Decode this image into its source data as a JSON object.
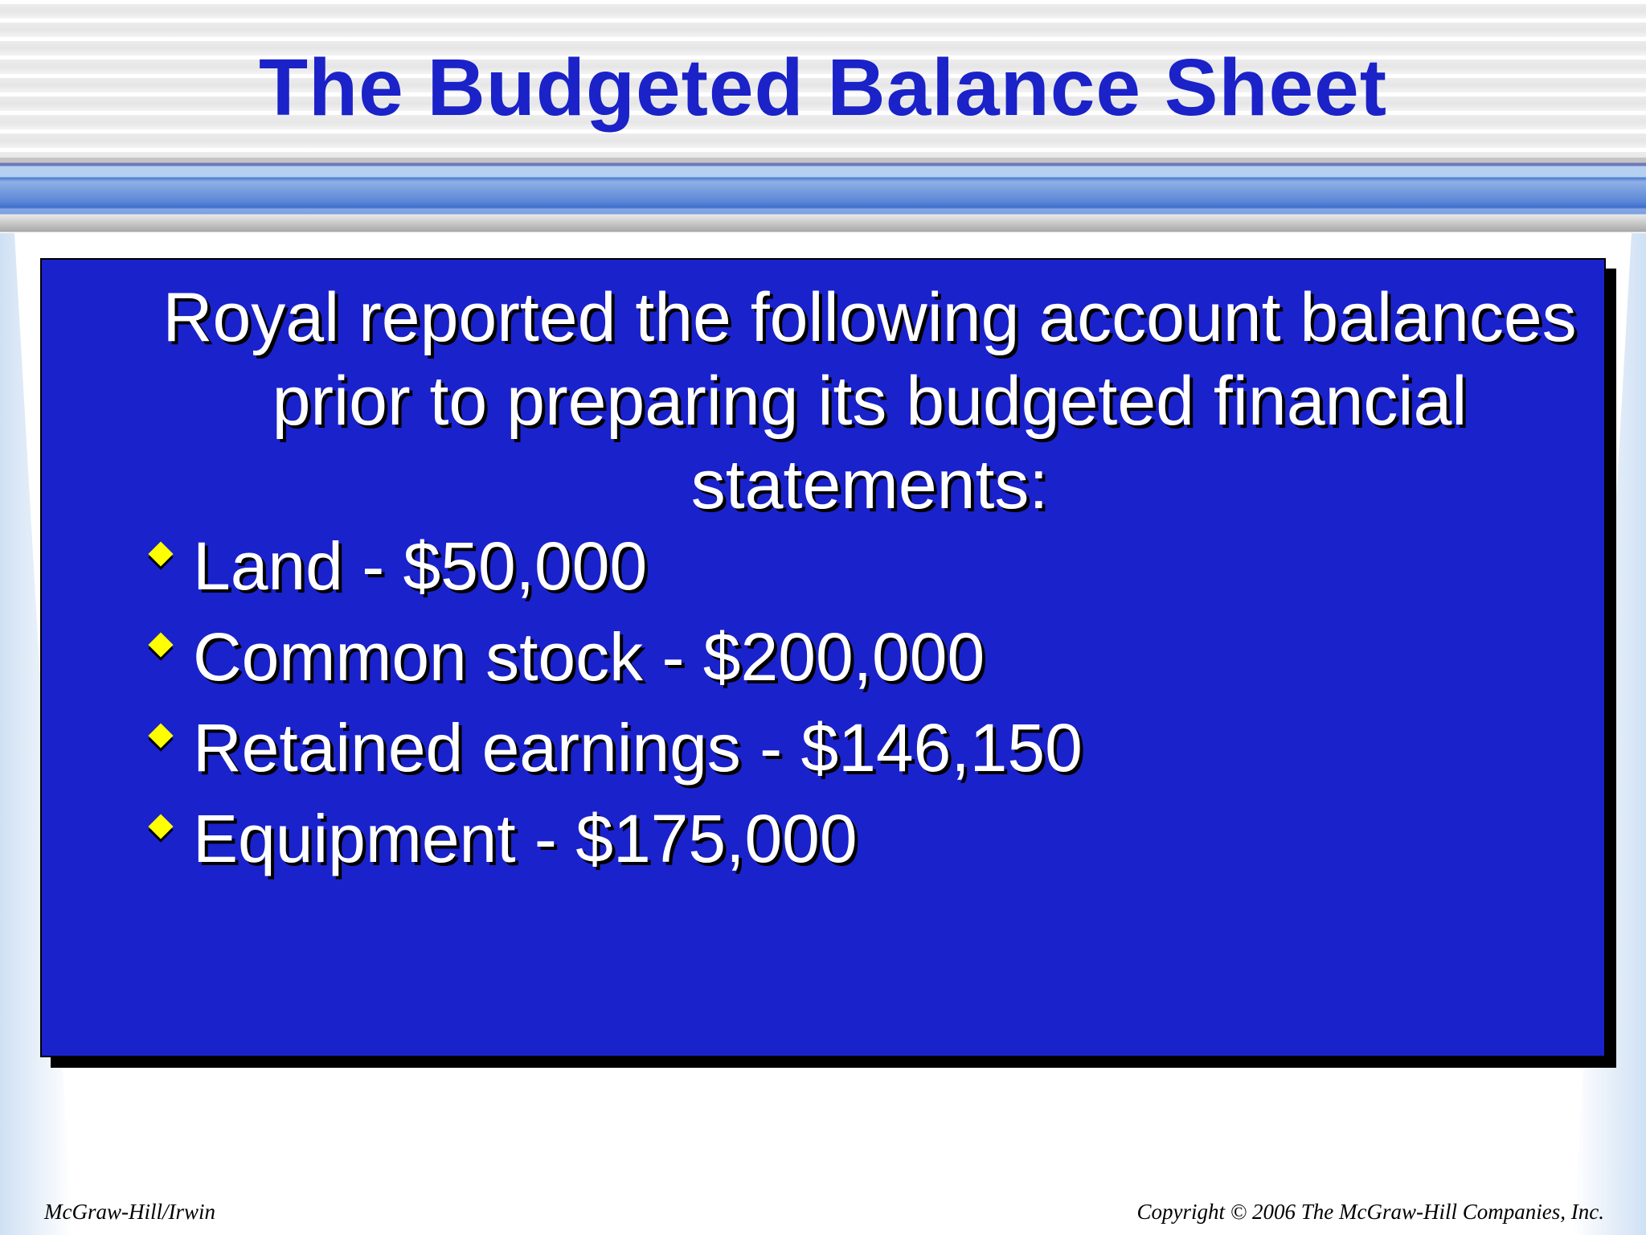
{
  "title": "The Budgeted Balance Sheet",
  "intro": "Royal reported the following account balances prior to preparing its budgeted financial statements:",
  "bullets": [
    {
      "label": "Land - $50,000"
    },
    {
      "label": "Common stock - $200,000"
    },
    {
      "label": "Retained earnings - $146,150"
    },
    {
      "label": "Equipment - $175,000"
    }
  ],
  "footer": {
    "left": "McGraw-Hill/Irwin",
    "right": "Copyright © 2006 The McGraw-Hill Companies, Inc."
  },
  "colors": {
    "title": "#1a22c8",
    "box": "#1a22cc",
    "bullet": "#ffff00"
  },
  "icons": {
    "bullet": "diamond-bullet-icon"
  }
}
